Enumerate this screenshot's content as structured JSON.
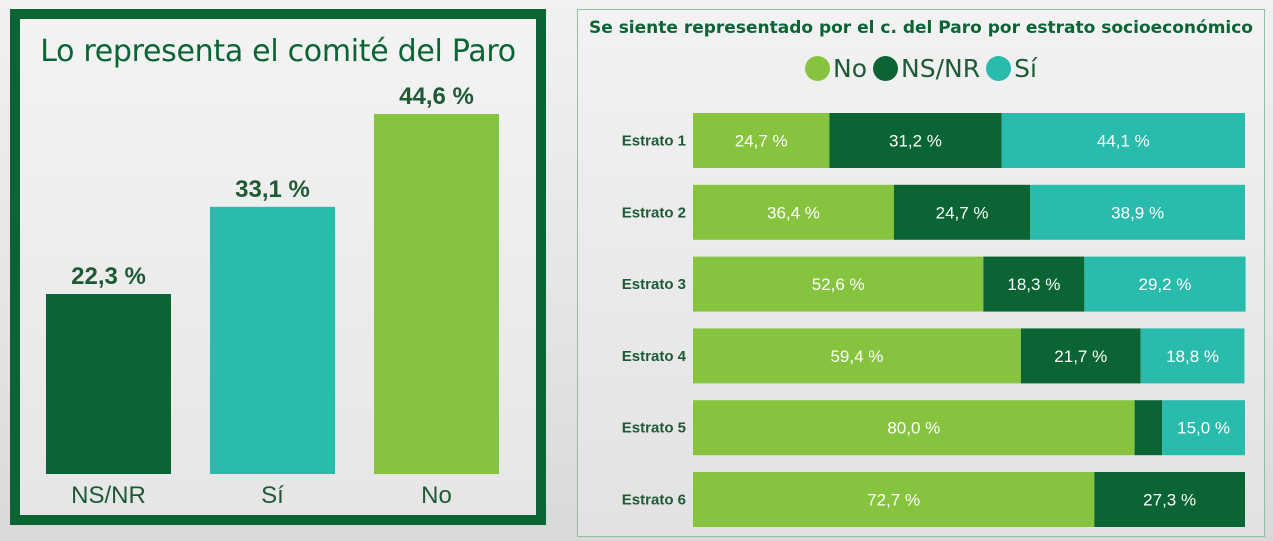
{
  "colors": {
    "no": "#86c440",
    "nsnr": "#0b6434",
    "si": "#29bbab",
    "label_dark": "#1e5a35"
  },
  "left_panel": {
    "title": "Lo representa el comité del Paro"
  },
  "right_panel": {
    "title": "Se siente representado por el c. del Paro por estrato socioeconómico"
  },
  "legend": [
    {
      "label": "No",
      "color_key": "no"
    },
    {
      "label": "NS/NR",
      "color_key": "nsnr"
    },
    {
      "label": "Sí",
      "color_key": "si"
    }
  ],
  "chart_data": [
    {
      "type": "bar",
      "title": "Lo representa el comité del Paro",
      "categories": [
        "NS/NR",
        "Sí",
        "No"
      ],
      "values": [
        22.3,
        33.1,
        44.6
      ],
      "value_labels": [
        "22,3 %",
        "33,1 %",
        "44,6 %"
      ],
      "color_keys": [
        "nsnr",
        "si",
        "no"
      ],
      "ylim": [
        0,
        50
      ],
      "grid": false
    },
    {
      "type": "bar",
      "orientation": "horizontal",
      "stacked": true,
      "title": "Se siente representado por el c. del Paro por estrato socioeconómico",
      "categories": [
        "Estrato 1",
        "Estrato 2",
        "Estrato 3",
        "Estrato 4",
        "Estrato 5",
        "Estrato 6"
      ],
      "series": [
        {
          "name": "No",
          "color_key": "no",
          "values": [
            24.7,
            36.4,
            52.6,
            59.4,
            80.0,
            72.7
          ],
          "labels": [
            "24,7 %",
            "36,4 %",
            "52,6 %",
            "59,4 %",
            "80,0 %",
            "72,7 %"
          ]
        },
        {
          "name": "NS/NR",
          "color_key": "nsnr",
          "values": [
            31.2,
            24.7,
            18.3,
            21.7,
            5.0,
            27.3
          ],
          "labels": [
            "31,2 %",
            "24,7 %",
            "18,3 %",
            "21,7 %",
            "",
            "27,3 %"
          ]
        },
        {
          "name": "Sí",
          "color_key": "si",
          "values": [
            44.1,
            38.9,
            29.2,
            18.8,
            15.0,
            0
          ],
          "labels": [
            "44,1 %",
            "38,9 %",
            "29,2 %",
            "18,8 %",
            "15,0 %",
            ""
          ]
        }
      ],
      "xlim": [
        0,
        100
      ],
      "grid": false,
      "legend_position": "top"
    }
  ]
}
